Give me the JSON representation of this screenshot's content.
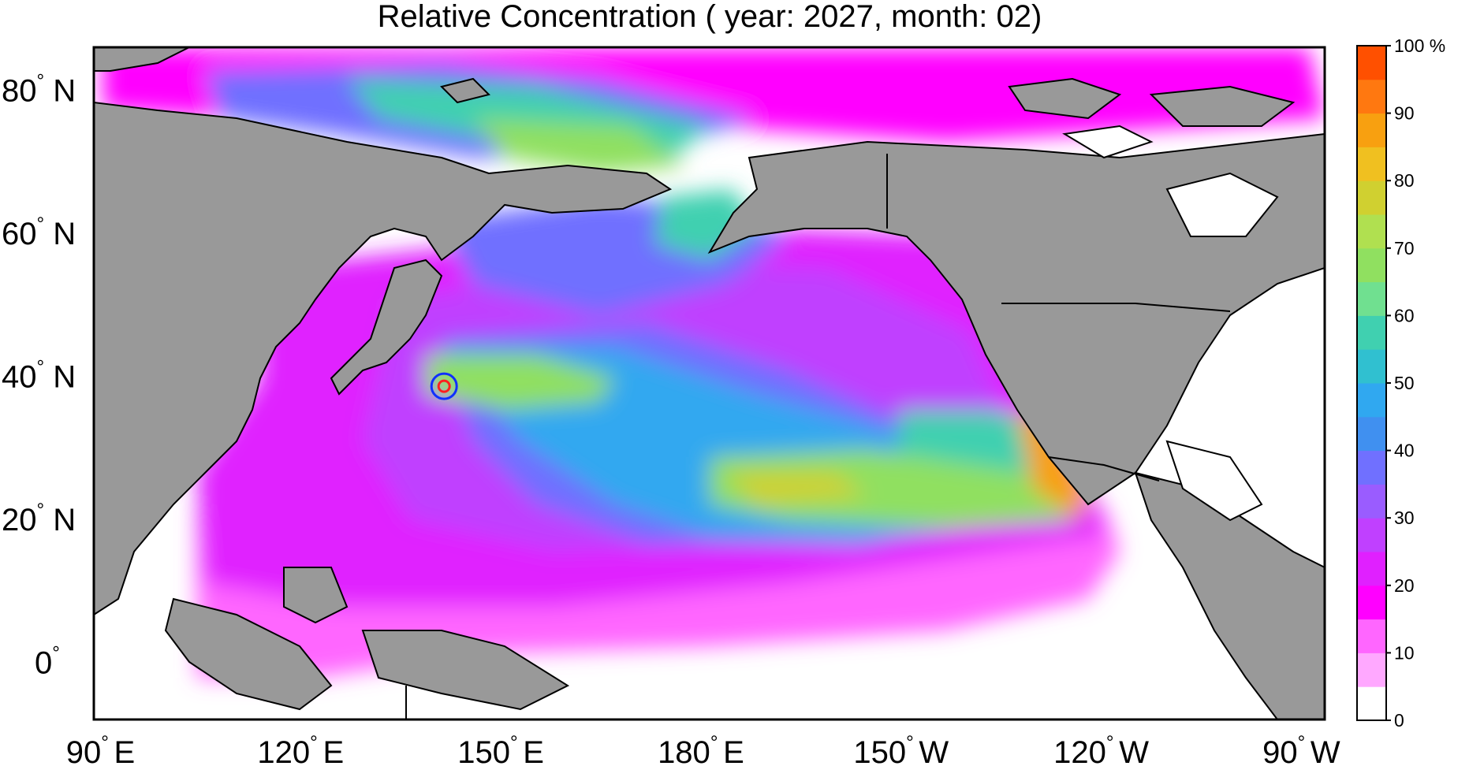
{
  "title": "Relative Concentration ( year: 2027, month: 02)",
  "map": {
    "lat_ticks": [
      {
        "lat": 80,
        "label": "80",
        "hemi": "N"
      },
      {
        "lat": 60,
        "label": "60",
        "hemi": "N"
      },
      {
        "lat": 40,
        "label": "40",
        "hemi": "N"
      },
      {
        "lat": 20,
        "label": "20",
        "hemi": "N"
      },
      {
        "lat": 0,
        "label": "0",
        "hemi": ""
      }
    ],
    "lon_ticks": [
      {
        "lon": 90,
        "label": "90",
        "hemi": "E"
      },
      {
        "lon": 120,
        "label": "120",
        "hemi": "E"
      },
      {
        "lon": 150,
        "label": "150",
        "hemi": "E"
      },
      {
        "lon": 180,
        "label": "180",
        "hemi": "E"
      },
      {
        "lon": 210,
        "label": "150",
        "hemi": "W"
      },
      {
        "lon": 240,
        "label": "120",
        "hemi": "W"
      },
      {
        "lon": 270,
        "label": "90",
        "hemi": "W"
      }
    ],
    "source_marker": {
      "lat": 38.6,
      "lon": 141.5
    },
    "land_color": "#999999",
    "ocean_blank_color": "#ffffff"
  },
  "colorbar": {
    "unit_label": "%",
    "levels": [
      0,
      10,
      20,
      30,
      40,
      50,
      60,
      70,
      80,
      90,
      100
    ],
    "labels": [
      "0",
      "10",
      "20",
      "30",
      "40",
      "50",
      "60",
      "70",
      "80",
      "90",
      "100"
    ],
    "colors": [
      "#ffffff",
      "#ffa8ff",
      "#ff66ff",
      "#ff00ff",
      "#e020ff",
      "#c040ff",
      "#9a5cff",
      "#7070ff",
      "#4090f0",
      "#30a8f0",
      "#30c0d0",
      "#40d0b0",
      "#70e090",
      "#90e060",
      "#b0e050",
      "#d0d030",
      "#f0c020",
      "#f8a010",
      "#ff7810",
      "#ff5000"
    ]
  }
}
